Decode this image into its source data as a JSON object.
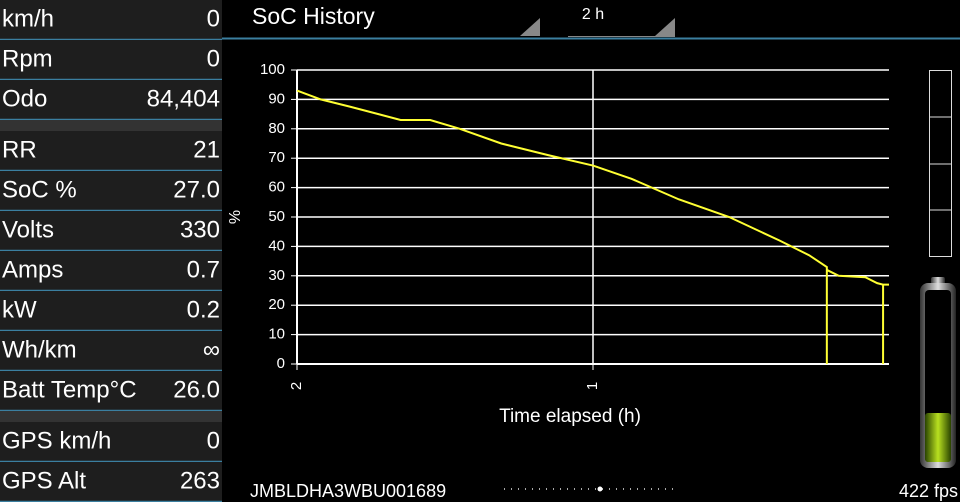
{
  "left_panel": {
    "groups": [
      [
        {
          "label": "km/h",
          "value": "0"
        },
        {
          "label": "Rpm",
          "value": "0"
        },
        {
          "label": "Odo",
          "value": "84,404"
        }
      ],
      [
        {
          "label": "RR",
          "value": "21"
        },
        {
          "label": "SoC %",
          "value": "27.0"
        },
        {
          "label": "Volts",
          "value": "330"
        },
        {
          "label": "Amps",
          "value": "0.7"
        },
        {
          "label": "kW",
          "value": "0.2"
        },
        {
          "label": "Wh/km",
          "value": "∞"
        },
        {
          "label": "Batt Temp°C",
          "value": "26.0"
        }
      ],
      [
        {
          "label": "GPS km/h",
          "value": "0"
        },
        {
          "label": "GPS Alt",
          "value": "263"
        }
      ]
    ]
  },
  "top_bar": {
    "title": "SoC History",
    "range": "2 h"
  },
  "chart_data": {
    "type": "line",
    "y_label": "%",
    "x_label": "Time elapsed (h)",
    "color": "#ffff33",
    "x": [
      2.0,
      1.92,
      1.82,
      1.65,
      1.55,
      1.45,
      1.31,
      1.15,
      1.0,
      0.87,
      0.71,
      0.54,
      0.37,
      0.27,
      0.21,
      0.21,
      0.21,
      0.17,
      0.08,
      0.04,
      0.02,
      0.02,
      0.02,
      0
    ],
    "values": [
      93,
      90,
      87.5,
      83,
      83,
      80,
      75,
      71,
      67.5,
      63,
      56,
      50,
      42,
      37,
      33,
      0,
      32,
      30,
      29.5,
      27.5,
      27,
      0,
      27,
      27
    ],
    "xlim": [
      2,
      0
    ],
    "xticks": [
      2,
      1
    ],
    "ylim": [
      0,
      100
    ],
    "yticks": [
      0,
      10,
      20,
      30,
      40,
      50,
      60,
      70,
      80,
      90,
      100
    ],
    "grid": true
  },
  "footer": {
    "vin": "JMBLDHA3WBU001689",
    "fps": "422 fps"
  }
}
